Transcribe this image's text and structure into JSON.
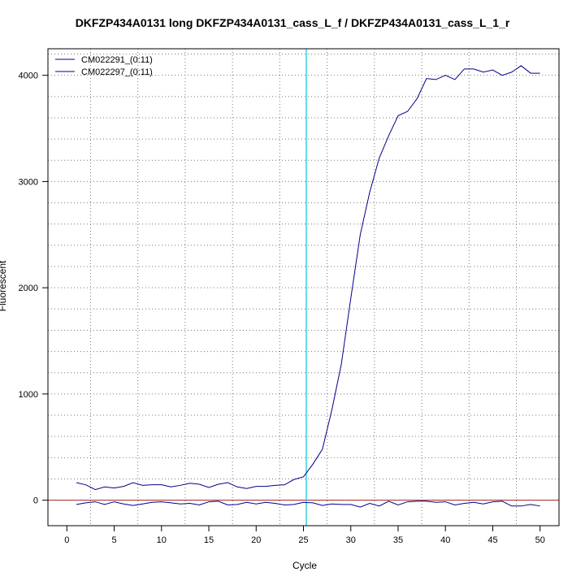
{
  "chart_data": {
    "type": "line",
    "title": "DKFZP434A0131 long DKFZP434A0131_cass_L_f / DKFZP434A0131_cass_L_1_r",
    "xlabel": "Cycle",
    "ylabel": "Fluorescent",
    "xlim": [
      -2,
      52
    ],
    "ylim": [
      -240,
      4250
    ],
    "x_ticks": [
      0,
      5,
      10,
      15,
      20,
      25,
      30,
      35,
      40,
      45,
      50
    ],
    "y_ticks": [
      0,
      1000,
      2000,
      3000,
      4000
    ],
    "grid": true,
    "legend_position": "top-left",
    "threshold": {
      "x": 25.3,
      "color": "#00c8d8"
    },
    "baseline": {
      "y": 0,
      "color": "#a02020"
    },
    "colors": {
      "series": "#00008b"
    },
    "x": [
      1,
      2,
      3,
      4,
      5,
      6,
      7,
      8,
      9,
      10,
      11,
      12,
      13,
      14,
      15,
      16,
      17,
      18,
      19,
      20,
      21,
      22,
      23,
      24,
      25,
      26,
      27,
      28,
      29,
      30,
      31,
      32,
      33,
      34,
      35,
      36,
      37,
      38,
      39,
      40,
      41,
      42,
      43,
      44,
      45,
      46,
      47,
      48,
      49,
      50
    ],
    "series": [
      {
        "name": "CM022291_(0:11)",
        "values": [
          165,
          145,
          100,
          125,
          115,
          130,
          165,
          140,
          145,
          145,
          125,
          140,
          160,
          150,
          120,
          150,
          165,
          125,
          110,
          130,
          130,
          140,
          145,
          195,
          220,
          340,
          480,
          850,
          1280,
          1900,
          2500,
          2900,
          3220,
          3430,
          3620,
          3660,
          3780,
          3970,
          3960,
          4000,
          3960,
          4060,
          4060,
          4030,
          4050,
          4000,
          4030,
          4090,
          4020,
          4020
        ]
      },
      {
        "name": "CM022297_(0:11)",
        "values": [
          -40,
          -25,
          -15,
          -40,
          -15,
          -35,
          -50,
          -35,
          -20,
          -15,
          -25,
          -35,
          -30,
          -45,
          -15,
          -10,
          -45,
          -40,
          -20,
          -35,
          -20,
          -30,
          -45,
          -40,
          -20,
          -25,
          -50,
          -35,
          -40,
          -40,
          -65,
          -30,
          -55,
          -10,
          -45,
          -15,
          -10,
          -10,
          -20,
          -15,
          -45,
          -30,
          -20,
          -35,
          -15,
          -10,
          -55,
          -55,
          -40,
          -55
        ]
      }
    ]
  }
}
